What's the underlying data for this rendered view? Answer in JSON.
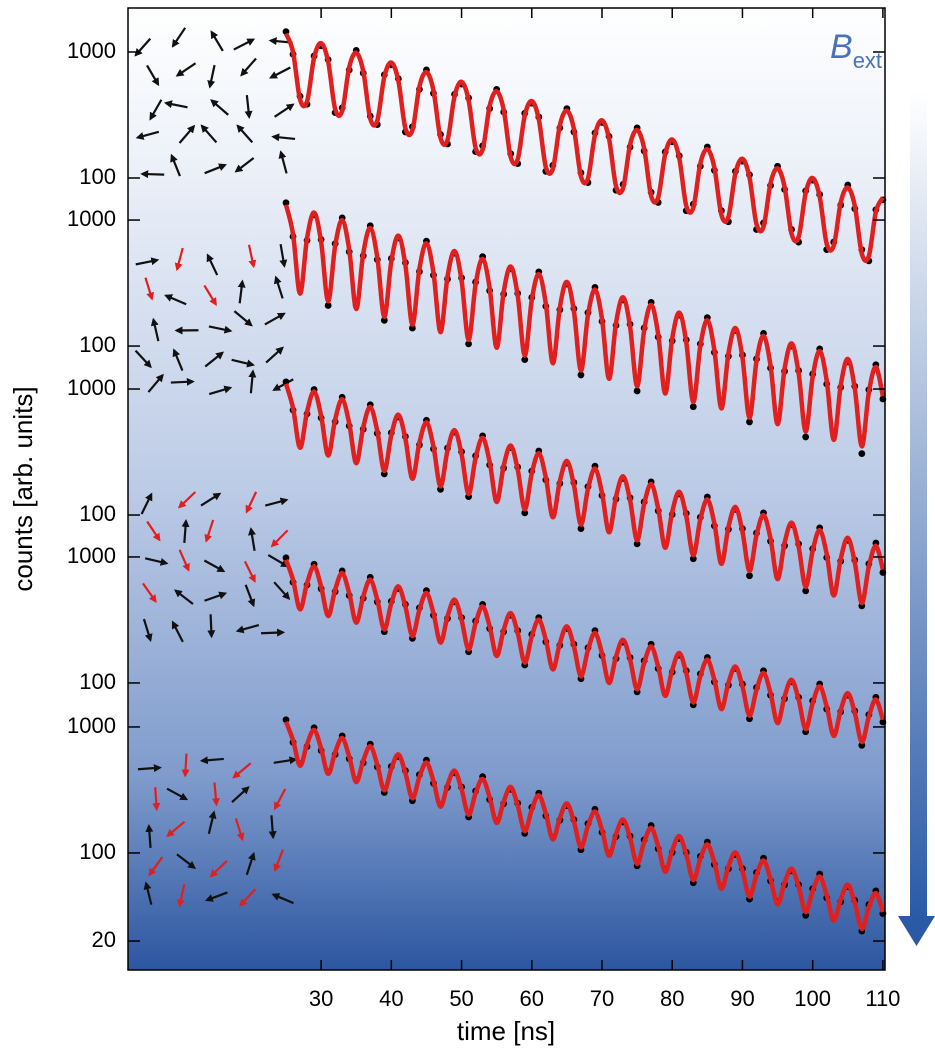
{
  "chart_data": {
    "type": "line",
    "x_label": "time [ns]",
    "y_label": "counts [arb. units]",
    "annotation": {
      "symbol": "B",
      "subscript": "ext"
    },
    "ylog": true,
    "xlim": [
      2.5,
      110.3
    ],
    "xticks": [
      30,
      40,
      50,
      60,
      70,
      80,
      90,
      100,
      110
    ],
    "x": [
      25,
      26,
      27,
      28,
      29,
      30,
      31,
      32,
      33,
      34,
      35,
      36,
      37,
      38,
      39,
      40,
      41,
      42,
      43,
      44,
      45,
      46,
      47,
      48,
      49,
      50,
      51,
      52,
      53,
      54,
      55,
      56,
      57,
      58,
      59,
      60,
      61,
      62,
      63,
      64,
      65,
      66,
      67,
      68,
      69,
      70,
      71,
      72,
      73,
      74,
      75,
      76,
      77,
      78,
      79,
      80,
      81,
      82,
      83,
      84,
      85,
      86,
      87,
      88,
      89,
      90,
      91,
      92,
      93,
      94,
      95,
      96,
      97,
      98,
      99,
      100,
      101,
      102,
      103,
      104,
      105,
      106,
      107,
      108,
      109,
      110
    ],
    "panels": [
      {
        "ylim": [
          5.18e-05,
          2234
        ],
        "yticks": [
          100,
          1000
        ],
        "series": [
          {
            "style": "points",
            "color": "#000000",
            "values": [
              1450,
              960,
              445,
              385,
              930,
              1120,
              870,
              330,
              360,
              720,
              1030,
              680,
              310,
              265,
              660,
              790,
              615,
              232,
              255,
              505,
              720,
              470,
              222,
              186,
              462,
              556,
              432,
              162,
              180,
              355,
              505,
              334,
              156,
              130,
              326,
              392,
              305,
              113,
              126,
              250,
              355,
              232,
              110,
              92,
              228,
              276,
              214,
              80,
              89,
              176,
              250,
              164,
              77,
              64,
              161,
              194,
              150,
              55,
              62,
              124,
              176,
              115,
              55,
              45,
              113,
              136,
              106,
              39,
              44,
              87,
              124,
              81,
              39,
              31,
              79,
              96,
              74,
              27,
              31,
              61,
              88,
              57,
              27,
              22,
              56,
              67
            ]
          },
          {
            "style": "line",
            "color": "#e0201e",
            "values": [
              1400,
              1001,
              420,
              405,
              900,
              1174,
              839,
              352,
              340,
              755,
              984,
              704,
              295,
              285,
              633,
              825,
              590,
              248,
              239,
              531,
              692,
              495,
              208,
              200,
              445,
              580,
              415,
              174,
              168,
              373,
              487,
              348,
              146,
              141,
              313,
              408,
              292,
              122,
              118,
              262,
              342,
              245,
              103,
              99,
              220,
              287,
              205,
              86,
              83,
              184,
              240,
              172,
              72,
              70,
              155,
              202,
              144,
              60,
              58,
              130,
              169,
              121,
              51,
              49,
              109,
              142,
              101,
              43,
              41,
              91,
              119,
              85,
              36,
              34,
              76,
              100,
              71,
              30,
              29,
              64,
              84,
              60,
              25,
              24,
              54,
              70
            ]
          }
        ]
      },
      {
        "ylim": [
          0.001117,
          48190
        ],
        "yticks": [
          100,
          1000
        ],
        "series": [
          {
            "style": "points",
            "color": "#000000",
            "values": [
              1370,
              740,
              280,
              690,
              1100,
              700,
              210,
              650,
              1040,
              560,
              210,
              520,
              900,
              485,
              160,
              495,
              720,
              460,
              139,
              390,
              680,
              365,
              138,
              340,
              545,
              348,
              104,
              322,
              512,
              275,
              104,
              258,
              410,
              262,
              78,
              243,
              388,
              207,
              79,
              194,
              310,
              198,
              59,
              184,
              292,
              157,
              60,
              146,
              232,
              149,
              44,
              139,
              222,
              118,
              45,
              110,
              176,
              112,
              33,
              104,
              168,
              89,
              35,
              83,
              133,
              85,
              25,
              79,
              126,
              67,
              26,
              63,
              100,
              64,
              19,
              60,
              95,
              50,
              20,
              47,
              75,
              48,
              14,
              45,
              71,
              38
            ]
          },
          {
            "style": "line",
            "color": "#e0201e",
            "values": [
              1320,
              772,
              261,
              720,
              1147,
              671,
              227,
              625,
              996,
              583,
              197,
              543,
              865,
              506,
              171,
              472,
              751,
              440,
              148,
              410,
              653,
              382,
              129,
              356,
              567,
              332,
              112,
              309,
              492,
              288,
              97,
              269,
              428,
              250,
              84,
              233,
              372,
              217,
              73,
              203,
              323,
              189,
              64,
              176,
              280,
              164,
              55,
              153,
              244,
              142,
              48,
              133,
              212,
              124,
              42,
              115,
              184,
              107,
              36,
              100,
              160,
              93,
              32,
              87,
              139,
              81,
              27,
              76,
              120,
              70,
              24,
              66,
              105,
              61,
              21,
              57,
              91,
              53,
              18,
              49,
              79,
              46,
              16,
              43,
              68,
              40
            ]
          }
        ]
      },
      {
        "ylim": [
          0.02449,
          1057000
        ],
        "yticks": [
          100,
          1000
        ],
        "series": [
          {
            "style": "points",
            "color": "#000000",
            "values": [
              1140,
              680,
              360,
              635,
              990,
              590,
              312,
              550,
              860,
              510,
              270,
              480,
              750,
              445,
              212,
              450,
              600,
              420,
              203,
              360,
              565,
              335,
              160,
              340,
              455,
              318,
              140,
              295,
              425,
              250,
              133,
              236,
              342,
              240,
              104,
              223,
              322,
              190,
              101,
              178,
              258,
              181,
              78,
              168,
              244,
              143,
              77,
              134,
              195,
              137,
              59,
              127,
              183,
              108,
              58,
              101,
              147,
              103,
              45,
              96,
              139,
              82,
              43,
              77,
              111,
              78,
              33,
              72,
              104,
              62,
              33,
              57,
              84,
              59,
              25,
              54,
              79,
              46,
              24,
              43,
              63,
              44,
              19,
              41,
              60,
              35
            ]
          },
          {
            "style": "line",
            "color": "#e0201e",
            "values": [
              1100,
              708,
              342,
              660,
              955,
              615,
              297,
              573,
              830,
              534,
              258,
              498,
              721,
              464,
              224,
              432,
              626,
              403,
              194,
              375,
              544,
              350,
              169,
              326,
              472,
              304,
              147,
              283,
              410,
              264,
              127,
              246,
              356,
              229,
              111,
              214,
              309,
              199,
              96,
              186,
              269,
              173,
              84,
              161,
              234,
              150,
              73,
              140,
              203,
              131,
              63,
              122,
              176,
              113,
              55,
              106,
              153,
              98,
              48,
              92,
              133,
              86,
              41,
              80,
              116,
              74,
              36,
              69,
              100,
              65,
              31,
              60,
              87,
              56,
              27,
              52,
              76,
              49,
              23,
              45,
              66,
              42,
              20,
              39,
              57,
              37
            ]
          }
        ]
      },
      {
        "ylim": [
          0.527,
          22750000
        ],
        "yticks": [
          100,
          1000
        ],
        "series": [
          {
            "style": "points",
            "color": "#000000",
            "values": [
              985,
              630,
              400,
              600,
              875,
              560,
              355,
              530,
              775,
              495,
              315,
              470,
              690,
              440,
              255,
              445,
              560,
              420,
              226,
              395,
              540,
              345,
              218,
              325,
              440,
              330,
              177,
              310,
              420,
              270,
              170,
              255,
              345,
              260,
              139,
              243,
              330,
              212,
              133,
              199,
              270,
              203,
              108,
              190,
              260,
              165,
              104,
              156,
              211,
              159,
              85,
              150,
              203,
              130,
              82,
              122,
              166,
              125,
              67,
              118,
              159,
              102,
              65,
              96,
              130,
              98,
              52,
              92,
              125,
              80,
              50,
              75,
              102,
              77,
              41,
              72,
              98,
              62,
              40,
              59,
              80,
              60,
              32,
              56,
              77,
              49
            ]
          },
          {
            "style": "line",
            "color": "#e0201e",
            "values": [
              951,
              659,
              384,
              620,
              842,
              583,
              340,
              549,
              745,
              516,
              301,
              486,
              660,
              457,
              266,
              430,
              584,
              405,
              236,
              381,
              517,
              358,
              209,
              337,
              458,
              317,
              185,
              298,
              405,
              281,
              164,
              264,
              359,
              249,
              145,
              234,
              318,
              220,
              128,
              207,
              281,
              195,
              113,
              183,
              249,
              172,
              100,
              162,
              220,
              153,
              89,
              144,
              195,
              135,
              79,
              127,
              173,
              120,
              70,
              113,
              153,
              106,
              62,
              100,
              135,
              94,
              55,
              88,
              120,
              83,
              48,
              78,
              106,
              74,
              43,
              69,
              94,
              65,
              38,
              61,
              83,
              58,
              34,
              54,
              74,
              51
            ]
          }
        ]
      },
      {
        "ylim": [
          11.78,
          508000000
        ],
        "yticks": [
          20,
          100,
          1000
        ],
        "series": [
          {
            "style": "points",
            "color": "#000000",
            "values": [
              1140,
              755,
              512,
              700,
              985,
              650,
              440,
              605,
              850,
              560,
              380,
              520,
              730,
              482,
              302,
              485,
              580,
              450,
              260,
              418,
              545,
              357,
              242,
              332,
              432,
              334,
              193,
              310,
              403,
              265,
              180,
              246,
              320,
              248,
              143,
              230,
              298,
              197,
              133,
              182,
              237,
              184,
              106,
              171,
              222,
              146,
              99,
              135,
              176,
              136,
              79,
              127,
              165,
              108,
              74,
              101,
              130,
              101,
              58,
              94,
              122,
              81,
              54,
              75,
              97,
              75,
              43,
              70,
              91,
              60,
              41,
              56,
              72,
              56,
              32,
              52,
              68,
              44,
              30,
              41,
              54,
              42,
              24,
              39,
              50,
              33
            ]
          },
          {
            "style": "line",
            "color": "#e0201e",
            "values": [
              1100,
              785,
              492,
              729,
              948,
              676,
              424,
              628,
              816,
              583,
              365,
              541,
              703,
              502,
              314,
              466,
              606,
              432,
              271,
              401,
              522,
              372,
              233,
              346,
              450,
              321,
              201,
              298,
              387,
              276,
              173,
              256,
              334,
              238,
              149,
              221,
              287,
              205,
              128,
              190,
              247,
              177,
              111,
              164,
              213,
              152,
              95,
              141,
              184,
              131,
              82,
              122,
              158,
              113,
              71,
              105,
              136,
              97,
              61,
              90,
              117,
              84,
              52,
              78,
              101,
              72,
              45,
              67,
              87,
              62,
              39,
              58,
              75,
              54,
              34,
              50,
              65,
              46,
              29,
              43,
              56,
              40,
              25,
              37,
              48,
              34
            ]
          }
        ]
      }
    ]
  }
}
